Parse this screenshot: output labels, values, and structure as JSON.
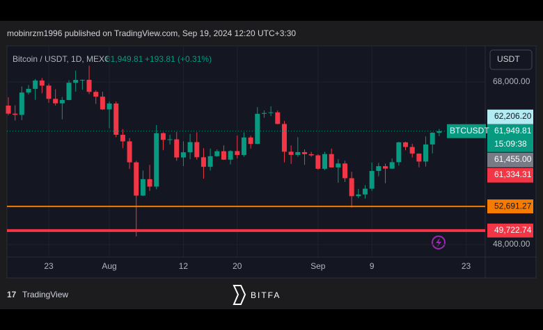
{
  "chart_data": {
    "type": "candlestick",
    "source": "mobinrzm1996 published on TradingView.com, Sep 19, 2024 12:20 UTC+3:30",
    "title": "Bitcoin / USDT, 1D, MEXC",
    "last_price": "61,949.81",
    "change": "+193.81 (+0.31%)",
    "currency": "USDT",
    "brand": "TradingView",
    "watermark": "BITFA",
    "up_color": "#089981",
    "down_color": "#f23645",
    "grid": true,
    "categories": [
      null,
      null,
      null,
      null,
      null,
      null,
      "23",
      null,
      null,
      null,
      null,
      null,
      null,
      null,
      null,
      "Aug",
      null,
      null,
      null,
      null,
      null,
      null,
      null,
      null,
      null,
      null,
      "12",
      null,
      null,
      null,
      null,
      null,
      null,
      null,
      "20",
      null,
      null,
      null,
      null,
      null,
      null,
      null,
      null,
      null,
      null,
      null,
      "Sep",
      null,
      null,
      null,
      null,
      null,
      null,
      null,
      "9",
      null,
      null,
      null,
      null,
      null,
      null,
      null,
      null,
      null,
      null,
      null,
      null,
      null,
      "23",
      null,
      null,
      null
    ],
    "open": [
      65090,
      64100,
      63950,
      66700,
      67150,
      68180,
      67550,
      65920,
      65370,
      65780,
      67900,
      68250,
      68260,
      66780,
      66190,
      64620,
      65350,
      61500,
      60690,
      58110,
      54020,
      56040,
      55130,
      61700,
      60880,
      60940,
      58710,
      59350,
      60600,
      58740,
      57560,
      58870,
      59480,
      58440,
      59500,
      59020,
      61170,
      60380,
      64080,
      64180,
      64260,
      62830,
      59420,
      59030,
      59370,
      59120,
      58970,
      57320,
      59130,
      57490,
      57970,
      56160,
      53950,
      54160,
      54870,
      57050,
      57640,
      57340,
      58130,
      60570,
      60000,
      59190,
      58210,
      60310,
      61756,
      null,
      null,
      null,
      null,
      null,
      null,
      null
    ],
    "high": [
      66130,
      65120,
      67440,
      67600,
      68370,
      68480,
      67800,
      67100,
      66150,
      68200,
      69400,
      68300,
      70000,
      66980,
      66800,
      65600,
      65600,
      62200,
      61100,
      58300,
      57100,
      57800,
      62700,
      61800,
      61500,
      61850,
      60700,
      61600,
      61800,
      59850,
      59800,
      59700,
      60200,
      59600,
      61400,
      61800,
      61400,
      64900,
      64500,
      65000,
      64500,
      63200,
      60200,
      61200,
      59700,
      59400,
      59100,
      59400,
      59800,
      58500,
      58300,
      56950,
      54850,
      55300,
      58100,
      58050,
      57950,
      58600,
      60650,
      60650,
      60400,
      59200,
      61300,
      61800,
      62206.2,
      null,
      null,
      null,
      null,
      null,
      null,
      null
    ],
    "low": [
      63920,
      63250,
      63300,
      66450,
      65800,
      66600,
      65450,
      65100,
      63400,
      65750,
      66800,
      67050,
      66500,
      65300,
      64550,
      62300,
      61200,
      59850,
      57300,
      49000,
      53950,
      54600,
      54800,
      59600,
      60300,
      58300,
      57650,
      58500,
      58450,
      56100,
      57100,
      58800,
      58400,
      57850,
      58600,
      58800,
      59800,
      60350,
      63600,
      63800,
      62800,
      58100,
      57900,
      58800,
      57800,
      58800,
      57200,
      57150,
      57450,
      55600,
      55700,
      52550,
      53700,
      53650,
      54600,
      56400,
      55550,
      57300,
      57700,
      59600,
      58700,
      57500,
      57600,
      59200,
      61334.31,
      null,
      null,
      null,
      null,
      null,
      null,
      null
    ],
    "close": [
      64100,
      63950,
      66700,
      67150,
      68180,
      67550,
      65920,
      65370,
      65780,
      67900,
      68250,
      68260,
      66780,
      66190,
      64620,
      65350,
      61500,
      60690,
      58110,
      54020,
      56040,
      55130,
      61700,
      60880,
      60940,
      58710,
      59350,
      60600,
      58740,
      57560,
      58870,
      59480,
      58440,
      59500,
      59020,
      61170,
      60380,
      64080,
      64180,
      64260,
      62830,
      59420,
      59030,
      59370,
      59120,
      58970,
      57320,
      59130,
      57490,
      57970,
      56160,
      53950,
      54160,
      54870,
      57050,
      57640,
      57340,
      58130,
      60570,
      60000,
      59190,
      58210,
      60310,
      61756,
      61949.81,
      null,
      null,
      null,
      null,
      null,
      null,
      null
    ],
    "ylim": [
      46460,
      72440
    ],
    "yticks": [
      {
        "value": 68000,
        "label": "68,000.00"
      },
      {
        "value": 48000,
        "label": "48,000.00"
      }
    ],
    "hlines": [
      {
        "value": 52691.27,
        "label": "52,691.27",
        "color": "#f57c00"
      },
      {
        "value": 49722.74,
        "label": "49,722.74",
        "color": "#f23645"
      }
    ],
    "price_tags": [
      {
        "value": 62206.2,
        "label": "62,206.20",
        "color": "#b2ebf2"
      },
      {
        "value": 61949.81,
        "label": "61,949.81",
        "color": "#089981",
        "symbol": "BTCUSDT",
        "countdown": "15:09:38"
      },
      {
        "value": 61455,
        "label": "61,455.00",
        "color": "#787b86"
      },
      {
        "value": 61334.31,
        "label": "61,334.31",
        "color": "#f23645"
      }
    ]
  }
}
